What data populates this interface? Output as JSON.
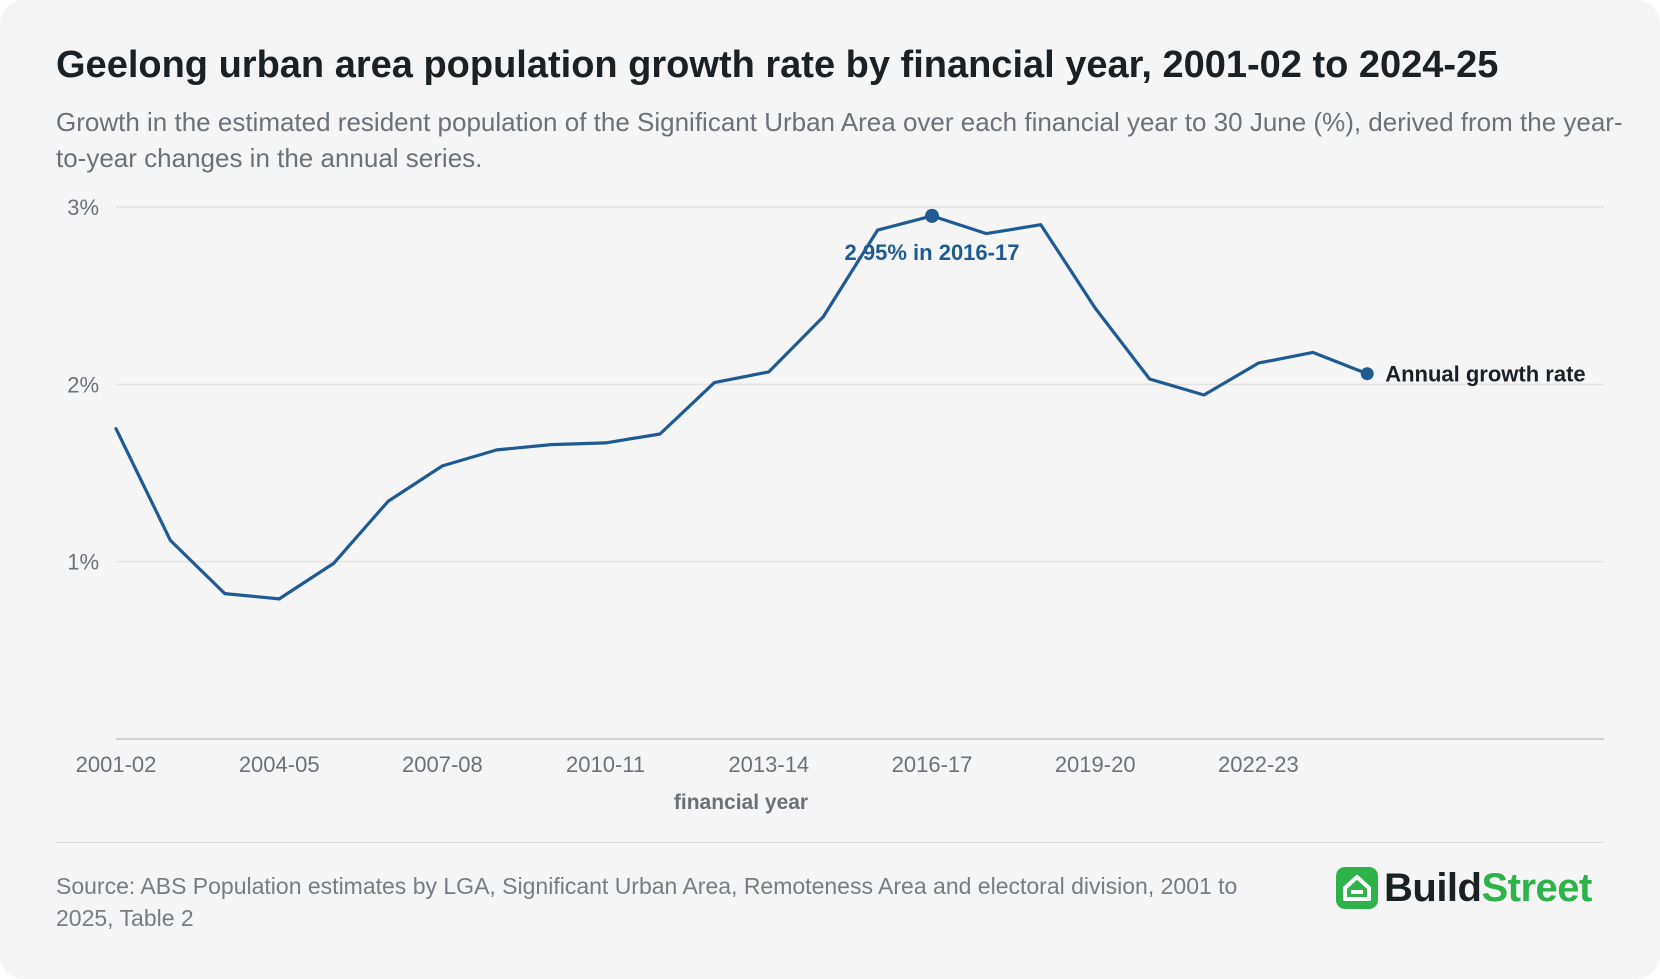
{
  "header": {
    "title": "Geelong urban area population growth rate by financial year, 2001-02 to 2024-25",
    "subtitle": "Growth in the estimated resident population of the Significant Urban Area over each financial year to 30 June (%), derived from the year-to-year changes in the annual series."
  },
  "footer": {
    "source": "Source: ABS Population estimates by LGA, Significant Urban Area, Remoteness Area and electoral division, 2001 to 2025, Table 2",
    "logo": {
      "part1": "Build",
      "part2": "Street",
      "icon": "house-icon"
    }
  },
  "colors": {
    "line": "#1f5a93",
    "grid": "#e2e2e2",
    "axis": "#c4c4c4",
    "tick_text": "#6b7177",
    "label_text": "#1a2024",
    "brand_green": "#2db34a"
  },
  "chart_data": {
    "type": "line",
    "xlabel": "financial year",
    "ylabel": "",
    "ylim": [
      0,
      3
    ],
    "yticks": [
      1,
      2,
      3
    ],
    "ytick_labels": [
      "1%",
      "2%",
      "3%"
    ],
    "grid": true,
    "x": [
      "2001-02",
      "2002-03",
      "2003-04",
      "2004-05",
      "2005-06",
      "2006-07",
      "2007-08",
      "2008-09",
      "2009-10",
      "2010-11",
      "2011-12",
      "2012-13",
      "2013-14",
      "2014-15",
      "2015-16",
      "2016-17",
      "2017-18",
      "2018-19",
      "2019-20",
      "2020-21",
      "2021-22",
      "2022-23",
      "2023-24",
      "2024-25"
    ],
    "xtick_labels": [
      "2001-02",
      "2004-05",
      "2007-08",
      "2010-11",
      "2013-14",
      "2016-17",
      "2019-20",
      "2022-23"
    ],
    "series": [
      {
        "name": "Annual growth rate",
        "values": [
          1.75,
          1.12,
          0.82,
          0.79,
          0.99,
          1.34,
          1.54,
          1.63,
          1.66,
          1.67,
          1.72,
          2.01,
          2.07,
          2.38,
          2.87,
          2.95,
          2.85,
          2.9,
          2.43,
          2.03,
          1.94,
          2.12,
          2.18,
          2.06
        ]
      }
    ],
    "annotations": [
      {
        "x": "2016-17",
        "y": 2.95,
        "text": "2.95% in 2016-17"
      }
    ]
  }
}
